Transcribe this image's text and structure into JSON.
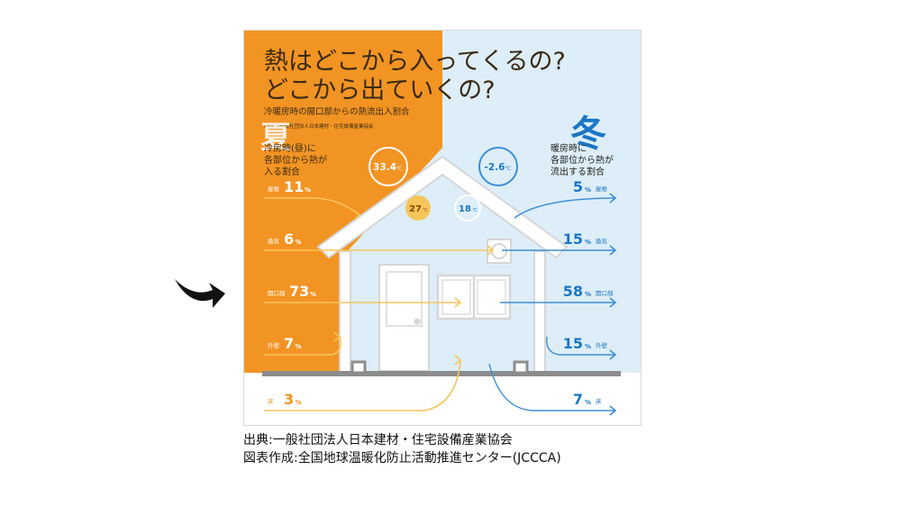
{
  "figure": {
    "title_line1": "熱はどこから入ってくるの?",
    "title_line2": "どこから出ていくの?",
    "subtitle": "冷暖房時の開口部からの熱流出入割合",
    "source_small": "(出典) 一般社団法人日本建材・住宅設備産業協会",
    "summer": {
      "kanji": "夏",
      "caption": [
        "冷房時(昼)に",
        "各部位から熱が",
        "入る割合"
      ],
      "outside_temp": "33.4",
      "inside_temp": "27",
      "items": [
        {
          "part": "屋根",
          "value": "11"
        },
        {
          "part": "換気",
          "value": "6"
        },
        {
          "part": "開口部",
          "value": "73"
        },
        {
          "part": "外壁",
          "value": "7"
        },
        {
          "part": "床",
          "value": "3"
        }
      ]
    },
    "winter": {
      "kanji": "冬",
      "caption": [
        "暖房時に",
        "各部位から熱が",
        "流出する割合"
      ],
      "outside_temp": "-2.6",
      "inside_temp": "18",
      "items": [
        {
          "part": "屋根",
          "value": "5"
        },
        {
          "part": "換気",
          "value": "15"
        },
        {
          "part": "開口部",
          "value": "58"
        },
        {
          "part": "外壁",
          "value": "15"
        },
        {
          "part": "床",
          "value": "7"
        }
      ]
    },
    "unit_percent": "%",
    "unit_celsius": "℃",
    "colors": {
      "summer_bg": "#f29423",
      "winter_bg": "#ddeef8",
      "summer_arrow": "#f5c55a",
      "winter_arrow": "#3d8fd6",
      "winter_text": "#1c76c4",
      "house_outline": "#d6d6d6",
      "ground": "#8c8c8c"
    }
  },
  "source_lines": [
    "出典:一般社団法人日本建材・住宅設備産業協会",
    "図表作成:全国地球温暖化防止活動推進センター(JCCCA)"
  ],
  "pointer_icon": "curved-arrow-icon"
}
